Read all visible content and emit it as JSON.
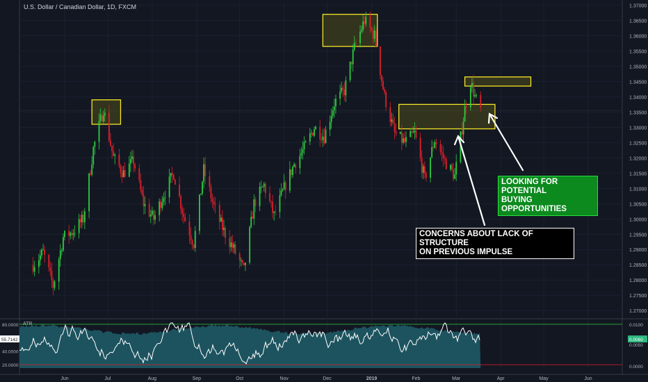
{
  "header": {
    "title": "U.S. Dollar / Canadian Dollar, 1D, FXCM"
  },
  "annotations": {
    "structure_line1": "CONCERNS ABOUT LACK OF STRUCTURE",
    "structure_line2": "ON PREVIOUS IMPULSE",
    "buying_line1": "LOOKING FOR POTENTIAL",
    "buying_line2": "BUYING OPPORTUNITIES"
  },
  "colors": {
    "background": "#131722",
    "up": "#2ecc40",
    "down": "#e0202a",
    "zone_border": "#f5e626",
    "zone_fill": "#3a3a1c",
    "indicator_fill": "#1e5a66",
    "indicator_line": "#ffffff",
    "green_label": "#0c8a1e"
  },
  "chart_data": [
    {
      "type": "candlestick",
      "title": "U.S. Dollar / Canadian Dollar, 1D, FXCM",
      "x_ticks": [
        "Jun",
        "Jul",
        "Aug",
        "Sep",
        "Oct",
        "Nov",
        "Dec",
        "2019",
        "Feb",
        "Mar",
        "Apr",
        "May",
        "Jun"
      ],
      "y_ticks": [
        "1.37000",
        "1.36500",
        "1.36000",
        "1.35500",
        "1.35000",
        "1.34500",
        "1.34000",
        "1.33500",
        "1.33000",
        "1.32500",
        "1.32000",
        "1.31500",
        "1.31000",
        "1.30500",
        "1.30000",
        "1.29500",
        "1.29000",
        "1.28500",
        "1.28000",
        "1.27500",
        "1.27000"
      ],
      "ylim": [
        1.268,
        1.371
      ],
      "grid": true,
      "price_path": [
        [
          "2018-05-10",
          1.285
        ],
        [
          "2018-05-17",
          1.289
        ],
        [
          "2018-05-24",
          1.278
        ],
        [
          "2018-05-31",
          1.294
        ],
        [
          "2018-06-07",
          1.296
        ],
        [
          "2018-06-14",
          1.3
        ],
        [
          "2018-06-21",
          1.323
        ],
        [
          "2018-06-28",
          1.336
        ],
        [
          "2018-07-05",
          1.32
        ],
        [
          "2018-07-12",
          1.315
        ],
        [
          "2018-07-19",
          1.319
        ],
        [
          "2018-07-26",
          1.305
        ],
        [
          "2018-08-02",
          1.3
        ],
        [
          "2018-08-09",
          1.308
        ],
        [
          "2018-08-16",
          1.315
        ],
        [
          "2018-08-23",
          1.301
        ],
        [
          "2018-08-30",
          1.292
        ],
        [
          "2018-09-06",
          1.316
        ],
        [
          "2018-09-13",
          1.304
        ],
        [
          "2018-09-20",
          1.296
        ],
        [
          "2018-09-27",
          1.29
        ],
        [
          "2018-10-04",
          1.283
        ],
        [
          "2018-10-11",
          1.305
        ],
        [
          "2018-10-18",
          1.311
        ],
        [
          "2018-10-25",
          1.301
        ],
        [
          "2018-11-01",
          1.31
        ],
        [
          "2018-11-08",
          1.318
        ],
        [
          "2018-11-15",
          1.323
        ],
        [
          "2018-11-22",
          1.33
        ],
        [
          "2018-11-29",
          1.327
        ],
        [
          "2018-12-06",
          1.338
        ],
        [
          "2018-12-13",
          1.342
        ],
        [
          "2018-12-20",
          1.356
        ],
        [
          "2018-12-27",
          1.365
        ],
        [
          "2019-01-03",
          1.36
        ],
        [
          "2019-01-10",
          1.34
        ],
        [
          "2019-01-17",
          1.328
        ],
        [
          "2019-01-24",
          1.325
        ],
        [
          "2019-01-31",
          1.328
        ],
        [
          "2019-02-07",
          1.313
        ],
        [
          "2019-02-14",
          1.326
        ],
        [
          "2019-02-21",
          1.319
        ],
        [
          "2019-02-28",
          1.314
        ],
        [
          "2019-03-07",
          1.336
        ],
        [
          "2019-03-11",
          1.345
        ],
        [
          "2019-03-14",
          1.34
        ],
        [
          "2019-03-18",
          1.3355
        ]
      ],
      "zones": [
        {
          "from": "2018-06-20",
          "to": "2018-07-10",
          "low": 1.331,
          "high": 1.339
        },
        {
          "from": "2018-11-28",
          "to": "2019-01-05",
          "low": 1.3565,
          "high": 1.367
        },
        {
          "from": "2019-01-20",
          "to": "2019-03-28",
          "low": 1.3295,
          "high": 1.3375
        },
        {
          "from": "2019-03-07",
          "to": "2019-04-22",
          "low": 1.3435,
          "high": 1.3465
        }
      ]
    },
    {
      "type": "line",
      "name": "ATR",
      "y_ticks": [
        "80.0000",
        "60.0000",
        "40.0000",
        "20.0000"
      ],
      "right_ticks": [
        "0.0100",
        "0.0050",
        "0.0000"
      ],
      "current_value": "55.7142",
      "current_right": "0.0060",
      "ylim": [
        15,
        85
      ]
    }
  ]
}
